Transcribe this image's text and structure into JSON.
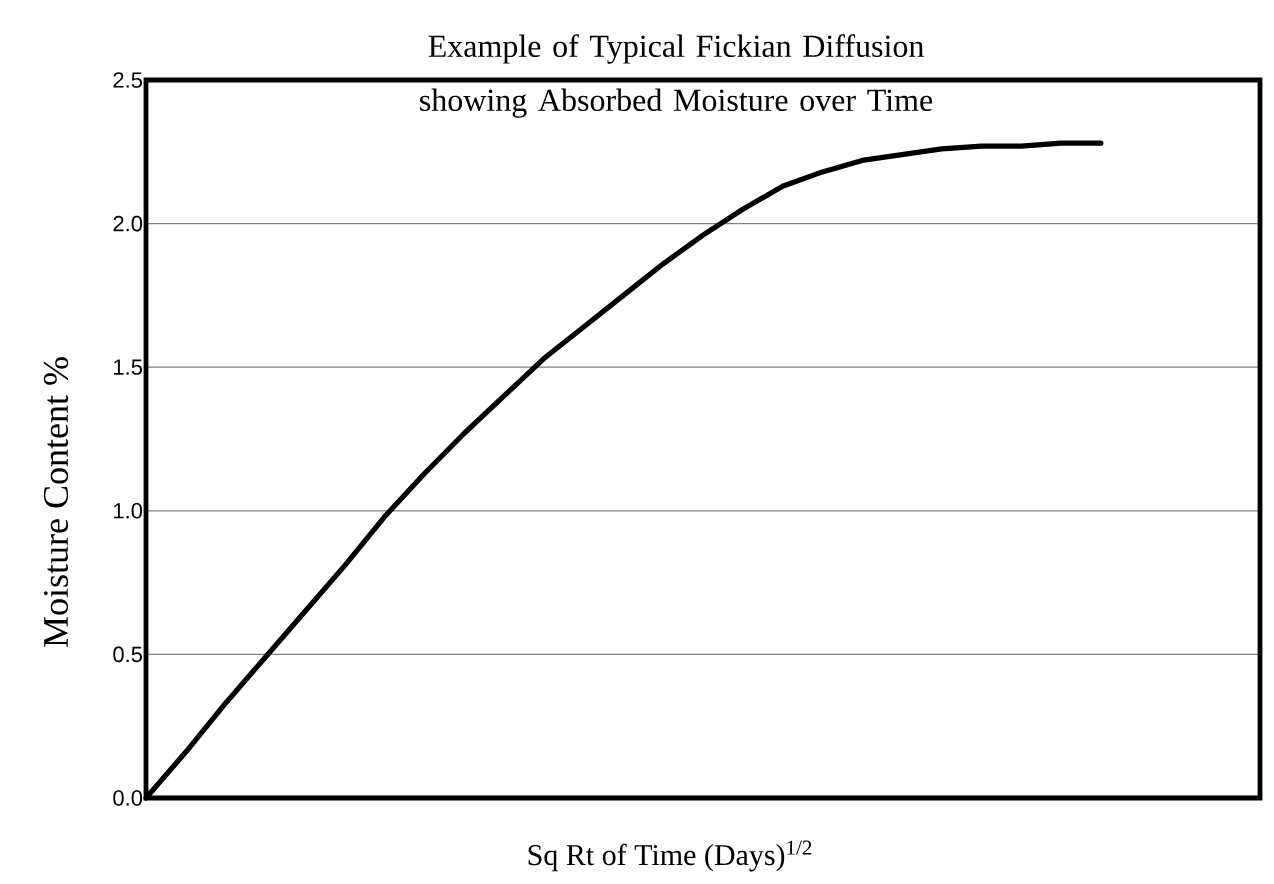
{
  "chart_data": {
    "type": "line",
    "title": "Example of Typical Fickian Diffusion showing Absorbed Moisture over Time",
    "xlabel": "Sq Rt of Time  (Days)$^{1/2}$",
    "ylabel": "Moisture Content %",
    "categories": [
      null,
      null,
      null,
      null,
      null,
      null,
      null,
      null,
      null,
      null,
      null,
      null,
      null,
      null,
      null,
      null,
      null,
      null,
      null,
      null,
      null,
      null,
      null,
      null,
      null,
      null,
      null,
      null,
      null
    ],
    "series": [
      {
        "color": "#000000",
        "values": [
          0,
          0.16,
          0.33,
          0.49,
          0.65,
          0.81,
          0.98,
          1.13,
          1.27,
          1.4,
          1.53,
          1.64,
          1.75,
          1.86,
          1.96,
          2.05,
          2.13,
          2.18,
          2.22,
          2.24,
          2.26,
          2.27,
          2.27,
          2.28,
          2.28,
          null,
          null,
          null,
          null
        ]
      }
    ],
    "ylim": [
      0,
      2.5
    ],
    "yticks": [
      {
        "value": 0,
        "label": "0.0"
      },
      0.5,
      {
        "value": 1,
        "label": "1.0"
      },
      1.5,
      {
        "value": 2,
        "label": "2.0"
      },
      2.5
    ],
    "grid": "y",
    "tick_labels": "y"
  }
}
